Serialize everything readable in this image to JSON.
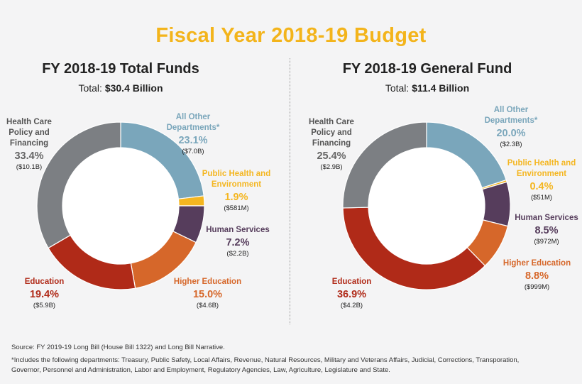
{
  "title": "Fiscal Year 2018-19 Budget",
  "colors": {
    "gray": "#7c7f83",
    "blue": "#7aa6bb",
    "yellow": "#f4b620",
    "purple": "#563d5c",
    "orange": "#d6672a",
    "red": "#b02a18",
    "title": "#f3b41b"
  },
  "chart_data": [
    {
      "type": "pie",
      "title": "FY 2018-19 Total Funds",
      "total_label": "Total:",
      "total_value": "$30.4 Billion",
      "slices": [
        {
          "name": "All Other Departments*",
          "pct_label": "23.1%",
          "value": 23.1,
          "amount": "($7.0B)",
          "color": "#7aa6bb"
        },
        {
          "name": "Public Health and Environment",
          "pct_label": "1.9%",
          "value": 1.9,
          "amount": "($581M)",
          "color": "#f4b620"
        },
        {
          "name": "Human Services",
          "pct_label": "7.2%",
          "value": 7.2,
          "amount": "($2.2B)",
          "color": "#563d5c"
        },
        {
          "name": "Higher Education",
          "pct_label": "15.0%",
          "value": 15.0,
          "amount": "($4.6B)",
          "color": "#d6672a"
        },
        {
          "name": "Education",
          "pct_label": "19.4%",
          "value": 19.4,
          "amount": "($5.9B)",
          "color": "#b02a18"
        },
        {
          "name": "Health Care Policy and Financing",
          "pct_label": "33.4%",
          "value": 33.4,
          "amount": "($10.1B)",
          "color": "#7c7f83"
        }
      ]
    },
    {
      "type": "pie",
      "title": "FY 2018-19 General Fund",
      "total_label": "Total:",
      "total_value": "$11.4 Billion",
      "slices": [
        {
          "name": "All Other Departments*",
          "pct_label": "20.0%",
          "value": 20.0,
          "amount": "($2.3B)",
          "color": "#7aa6bb"
        },
        {
          "name": "Public Health and Environment",
          "pct_label": "0.4%",
          "value": 0.4,
          "amount": "($51M)",
          "color": "#f4b620"
        },
        {
          "name": "Human Services",
          "pct_label": "8.5%",
          "value": 8.5,
          "amount": "($972M)",
          "color": "#563d5c"
        },
        {
          "name": "Higher Education",
          "pct_label": "8.8%",
          "value": 8.8,
          "amount": "($999M)",
          "color": "#d6672a"
        },
        {
          "name": "Education",
          "pct_label": "36.9%",
          "value": 36.9,
          "amount": "($4.2B)",
          "color": "#b02a18"
        },
        {
          "name": "Health Care Policy and Financing",
          "pct_label": "25.4%",
          "value": 25.4,
          "amount": "($2.9B)",
          "color": "#7c7f83"
        }
      ]
    }
  ],
  "footer": {
    "source": "Source: FY 2019-19 Long Bill (House Bill 1322) and Long Bill Narrative.",
    "note": "*Includes the following departments: Treasury, Public Safety, Local Affairs, Revenue, Natural Resources, Military and Veterans Affairs, Judicial, Corrections, Transporation, Governor, Personnel and Administration, Labor and Employment, Regulatory Agencies, Law, Agriculture, Legislature and State."
  }
}
